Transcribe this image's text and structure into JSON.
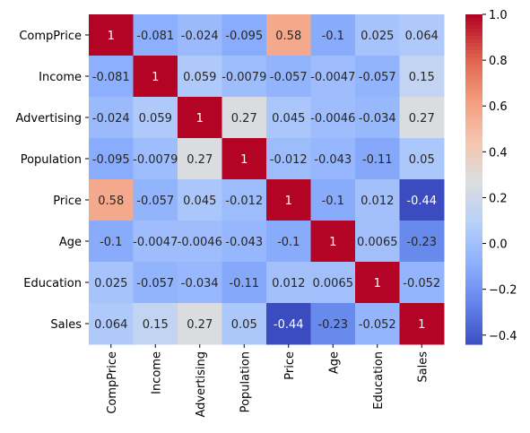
{
  "chart_data": {
    "type": "heatmap",
    "title": "",
    "xlabel": "",
    "ylabel": "",
    "rows": [
      "CompPrice",
      "Income",
      "Advertising",
      "Population",
      "Price",
      "Age",
      "Education",
      "Sales"
    ],
    "columns": [
      "CompPrice",
      "Income",
      "Advertising",
      "Population",
      "Price",
      "Age",
      "Education",
      "Sales"
    ],
    "values": [
      [
        1,
        -0.081,
        -0.024,
        -0.095,
        0.58,
        -0.1,
        0.025,
        0.064
      ],
      [
        -0.081,
        1,
        0.059,
        -0.0079,
        -0.057,
        -0.0047,
        -0.057,
        0.15
      ],
      [
        -0.024,
        0.059,
        1,
        0.27,
        0.045,
        -0.0046,
        -0.034,
        0.27
      ],
      [
        -0.095,
        -0.0079,
        0.27,
        1,
        -0.012,
        -0.043,
        -0.11,
        0.05
      ],
      [
        0.58,
        -0.057,
        0.045,
        -0.012,
        1,
        -0.1,
        0.012,
        -0.44
      ],
      [
        -0.1,
        -0.0047,
        -0.0046,
        -0.043,
        -0.1,
        1,
        0.0065,
        -0.23
      ],
      [
        0.025,
        -0.057,
        -0.034,
        -0.11,
        0.012,
        0.0065,
        1,
        -0.052
      ],
      [
        0.064,
        0.15,
        0.27,
        0.05,
        -0.44,
        -0.23,
        -0.052,
        1
      ]
    ],
    "annotations": [
      [
        "1",
        "-0.081",
        "-0.024",
        "-0.095",
        "0.58",
        "-0.1",
        "0.025",
        "0.064"
      ],
      [
        "-0.081",
        "1",
        "0.059",
        "-0.0079",
        "-0.057",
        "-0.0047",
        "-0.057",
        "0.15"
      ],
      [
        "-0.024",
        "0.059",
        "1",
        "0.27",
        "0.045",
        "-0.0046",
        "-0.034",
        "0.27"
      ],
      [
        "-0.095",
        "-0.0079",
        "0.27",
        "1",
        "-0.012",
        "-0.043",
        "-0.11",
        "0.05"
      ],
      [
        "0.58",
        "-0.057",
        "0.045",
        "-0.012",
        "1",
        "-0.1",
        "0.012",
        "-0.44"
      ],
      [
        "-0.1",
        "-0.0047",
        "-0.0046",
        "-0.043",
        "-0.1",
        "1",
        "0.0065",
        "-0.23"
      ],
      [
        "0.025",
        "-0.057",
        "-0.034",
        "-0.11",
        "0.012",
        "0.0065",
        "1",
        "-0.052"
      ],
      [
        "0.064",
        "0.15",
        "0.27",
        "0.05",
        "-0.44",
        "-0.23",
        "-0.052",
        "1"
      ]
    ],
    "colormap": "coolwarm",
    "vmin": -0.44,
    "vmax": 1.0,
    "colorbar": {
      "ticks": [
        1.0,
        0.8,
        0.6,
        0.4,
        0.2,
        0.0,
        -0.2,
        -0.4
      ],
      "tick_labels": [
        "1.0",
        "0.8",
        "0.6",
        "0.4",
        "0.2",
        "0.0",
        "−0.2",
        "−0.4"
      ]
    },
    "grid": false,
    "legend": "colorbar-right"
  }
}
